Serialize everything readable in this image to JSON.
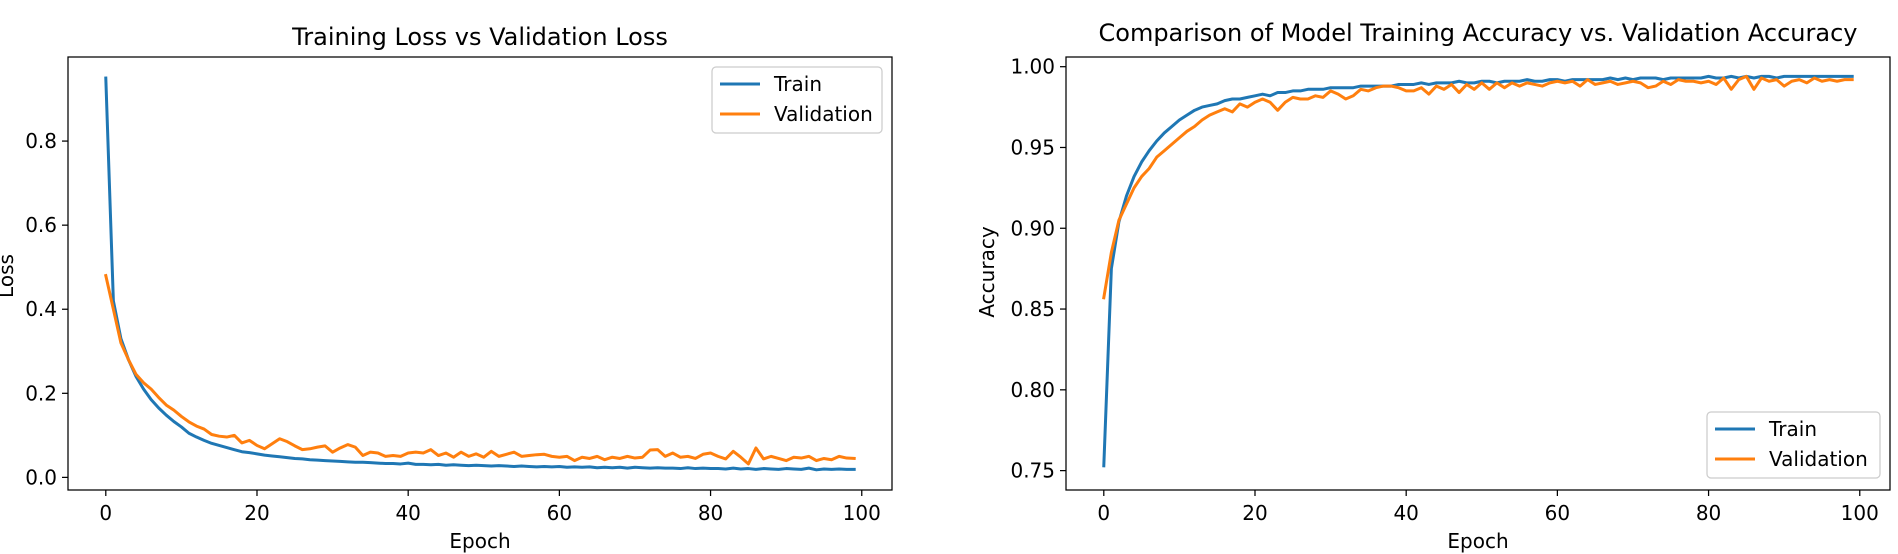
{
  "colors": {
    "train": "#1f77b4",
    "validation": "#ff7f0e"
  },
  "chart_data": [
    {
      "type": "line",
      "title": "Training Loss vs Validation Loss",
      "xlabel": "Epoch",
      "ylabel": "Loss",
      "xlim": [
        -5,
        104
      ],
      "ylim": [
        -0.03,
        1.0
      ],
      "xticks": [
        0,
        20,
        40,
        60,
        80,
        100
      ],
      "yticks": [
        0.0,
        0.2,
        0.4,
        0.6,
        0.8
      ],
      "ytick_labels": [
        "0.0",
        "0.2",
        "0.4",
        "0.6",
        "0.8"
      ],
      "grid": false,
      "legend_position": "top-right",
      "series": [
        {
          "name": "Train",
          "color": "#1f77b4",
          "x": [
            0,
            1,
            2,
            3,
            4,
            5,
            6,
            7,
            8,
            9,
            10,
            11,
            12,
            13,
            14,
            15,
            16,
            17,
            18,
            19,
            20,
            21,
            22,
            23,
            24,
            25,
            26,
            27,
            28,
            29,
            30,
            31,
            32,
            33,
            34,
            35,
            36,
            37,
            38,
            39,
            40,
            41,
            42,
            43,
            44,
            45,
            46,
            47,
            48,
            49,
            50,
            51,
            52,
            53,
            54,
            55,
            56,
            57,
            58,
            59,
            60,
            61,
            62,
            63,
            64,
            65,
            66,
            67,
            68,
            69,
            70,
            71,
            72,
            73,
            74,
            75,
            76,
            77,
            78,
            79,
            80,
            81,
            82,
            83,
            84,
            85,
            86,
            87,
            88,
            89,
            90,
            91,
            92,
            93,
            94,
            95,
            96,
            97,
            98,
            99
          ],
          "values": [
            0.95,
            0.42,
            0.33,
            0.28,
            0.24,
            0.21,
            0.185,
            0.165,
            0.148,
            0.133,
            0.12,
            0.105,
            0.096,
            0.088,
            0.081,
            0.076,
            0.071,
            0.066,
            0.061,
            0.059,
            0.056,
            0.053,
            0.051,
            0.049,
            0.047,
            0.045,
            0.044,
            0.042,
            0.041,
            0.04,
            0.039,
            0.038,
            0.037,
            0.036,
            0.036,
            0.035,
            0.034,
            0.033,
            0.033,
            0.032,
            0.034,
            0.031,
            0.031,
            0.03,
            0.031,
            0.029,
            0.03,
            0.029,
            0.028,
            0.029,
            0.028,
            0.027,
            0.028,
            0.027,
            0.026,
            0.027,
            0.026,
            0.025,
            0.026,
            0.025,
            0.026,
            0.024,
            0.025,
            0.024,
            0.025,
            0.023,
            0.024,
            0.023,
            0.024,
            0.022,
            0.024,
            0.023,
            0.022,
            0.023,
            0.022,
            0.022,
            0.021,
            0.023,
            0.021,
            0.022,
            0.021,
            0.021,
            0.02,
            0.022,
            0.02,
            0.021,
            0.019,
            0.021,
            0.02,
            0.019,
            0.021,
            0.02,
            0.019,
            0.022,
            0.018,
            0.02,
            0.019,
            0.02,
            0.019,
            0.019
          ]
        },
        {
          "name": "Validation",
          "color": "#ff7f0e",
          "x": [
            0,
            1,
            2,
            3,
            4,
            5,
            6,
            7,
            8,
            9,
            10,
            11,
            12,
            13,
            14,
            15,
            16,
            17,
            18,
            19,
            20,
            21,
            22,
            23,
            24,
            25,
            26,
            27,
            28,
            29,
            30,
            31,
            32,
            33,
            34,
            35,
            36,
            37,
            38,
            39,
            40,
            41,
            42,
            43,
            44,
            45,
            46,
            47,
            48,
            49,
            50,
            51,
            52,
            53,
            54,
            55,
            56,
            57,
            58,
            59,
            60,
            61,
            62,
            63,
            64,
            65,
            66,
            67,
            68,
            69,
            70,
            71,
            72,
            73,
            74,
            75,
            76,
            77,
            78,
            79,
            80,
            81,
            82,
            83,
            84,
            85,
            86,
            87,
            88,
            89,
            90,
            91,
            92,
            93,
            94,
            95,
            96,
            97,
            98,
            99
          ],
          "values": [
            0.48,
            0.4,
            0.32,
            0.28,
            0.245,
            0.225,
            0.21,
            0.19,
            0.172,
            0.16,
            0.145,
            0.132,
            0.122,
            0.115,
            0.102,
            0.098,
            0.096,
            0.1,
            0.082,
            0.088,
            0.076,
            0.068,
            0.08,
            0.092,
            0.085,
            0.075,
            0.066,
            0.068,
            0.072,
            0.075,
            0.06,
            0.07,
            0.078,
            0.072,
            0.052,
            0.06,
            0.058,
            0.05,
            0.052,
            0.05,
            0.058,
            0.06,
            0.058,
            0.066,
            0.052,
            0.058,
            0.048,
            0.06,
            0.05,
            0.056,
            0.048,
            0.062,
            0.05,
            0.055,
            0.06,
            0.05,
            0.052,
            0.054,
            0.055,
            0.05,
            0.048,
            0.05,
            0.04,
            0.048,
            0.045,
            0.05,
            0.042,
            0.048,
            0.045,
            0.05,
            0.046,
            0.048,
            0.065,
            0.066,
            0.05,
            0.058,
            0.048,
            0.05,
            0.045,
            0.055,
            0.058,
            0.05,
            0.044,
            0.062,
            0.048,
            0.032,
            0.07,
            0.044,
            0.05,
            0.045,
            0.04,
            0.048,
            0.046,
            0.05,
            0.04,
            0.045,
            0.042,
            0.05,
            0.046,
            0.045
          ]
        }
      ]
    },
    {
      "type": "line",
      "title": "Comparison of Model Training Accuracy vs. Validation Accuracy",
      "xlabel": "Epoch",
      "ylabel": "Accuracy",
      "xlim": [
        -5,
        104
      ],
      "ylim": [
        0.738,
        1.006
      ],
      "xticks": [
        0,
        20,
        40,
        60,
        80,
        100
      ],
      "yticks": [
        0.75,
        0.8,
        0.85,
        0.9,
        0.95,
        1.0
      ],
      "ytick_labels": [
        "0.75",
        "0.80",
        "0.85",
        "0.90",
        "0.95",
        "1.00"
      ],
      "grid": false,
      "legend_position": "bottom-right",
      "series": [
        {
          "name": "Train",
          "color": "#1f77b4",
          "x": [
            0,
            1,
            2,
            3,
            4,
            5,
            6,
            7,
            8,
            9,
            10,
            11,
            12,
            13,
            14,
            15,
            16,
            17,
            18,
            19,
            20,
            21,
            22,
            23,
            24,
            25,
            26,
            27,
            28,
            29,
            30,
            31,
            32,
            33,
            34,
            35,
            36,
            37,
            38,
            39,
            40,
            41,
            42,
            43,
            44,
            45,
            46,
            47,
            48,
            49,
            50,
            51,
            52,
            53,
            54,
            55,
            56,
            57,
            58,
            59,
            60,
            61,
            62,
            63,
            64,
            65,
            66,
            67,
            68,
            69,
            70,
            71,
            72,
            73,
            74,
            75,
            76,
            77,
            78,
            79,
            80,
            81,
            82,
            83,
            84,
            85,
            86,
            87,
            88,
            89,
            90,
            91,
            92,
            93,
            94,
            95,
            96,
            97,
            98,
            99
          ],
          "values": [
            0.753,
            0.875,
            0.904,
            0.92,
            0.932,
            0.941,
            0.948,
            0.954,
            0.959,
            0.963,
            0.967,
            0.97,
            0.973,
            0.975,
            0.976,
            0.977,
            0.979,
            0.98,
            0.98,
            0.981,
            0.982,
            0.983,
            0.982,
            0.984,
            0.984,
            0.985,
            0.985,
            0.986,
            0.986,
            0.986,
            0.987,
            0.987,
            0.987,
            0.987,
            0.988,
            0.988,
            0.988,
            0.988,
            0.988,
            0.989,
            0.989,
            0.989,
            0.99,
            0.989,
            0.99,
            0.99,
            0.99,
            0.991,
            0.99,
            0.99,
            0.991,
            0.991,
            0.99,
            0.991,
            0.991,
            0.991,
            0.992,
            0.991,
            0.991,
            0.992,
            0.992,
            0.991,
            0.992,
            0.992,
            0.992,
            0.992,
            0.992,
            0.993,
            0.992,
            0.993,
            0.992,
            0.993,
            0.993,
            0.993,
            0.992,
            0.993,
            0.993,
            0.993,
            0.993,
            0.993,
            0.994,
            0.993,
            0.993,
            0.994,
            0.993,
            0.994,
            0.993,
            0.994,
            0.994,
            0.993,
            0.994,
            0.994,
            0.994,
            0.994,
            0.994,
            0.994,
            0.994,
            0.994,
            0.994,
            0.994
          ]
        },
        {
          "name": "Validation",
          "color": "#ff7f0e",
          "x": [
            0,
            1,
            2,
            3,
            4,
            5,
            6,
            7,
            8,
            9,
            10,
            11,
            12,
            13,
            14,
            15,
            16,
            17,
            18,
            19,
            20,
            21,
            22,
            23,
            24,
            25,
            26,
            27,
            28,
            29,
            30,
            31,
            32,
            33,
            34,
            35,
            36,
            37,
            38,
            39,
            40,
            41,
            42,
            43,
            44,
            45,
            46,
            47,
            48,
            49,
            50,
            51,
            52,
            53,
            54,
            55,
            56,
            57,
            58,
            59,
            60,
            61,
            62,
            63,
            64,
            65,
            66,
            67,
            68,
            69,
            70,
            71,
            72,
            73,
            74,
            75,
            76,
            77,
            78,
            79,
            80,
            81,
            82,
            83,
            84,
            85,
            86,
            87,
            88,
            89,
            90,
            91,
            92,
            93,
            94,
            95,
            96,
            97,
            98,
            99
          ],
          "values": [
            0.857,
            0.885,
            0.905,
            0.915,
            0.925,
            0.932,
            0.937,
            0.944,
            0.948,
            0.952,
            0.956,
            0.96,
            0.963,
            0.967,
            0.97,
            0.972,
            0.974,
            0.972,
            0.977,
            0.975,
            0.978,
            0.98,
            0.978,
            0.973,
            0.978,
            0.981,
            0.98,
            0.98,
            0.982,
            0.981,
            0.985,
            0.983,
            0.98,
            0.982,
            0.986,
            0.985,
            0.987,
            0.988,
            0.988,
            0.987,
            0.985,
            0.985,
            0.987,
            0.983,
            0.988,
            0.986,
            0.989,
            0.984,
            0.989,
            0.986,
            0.99,
            0.986,
            0.99,
            0.987,
            0.99,
            0.988,
            0.99,
            0.989,
            0.988,
            0.99,
            0.991,
            0.99,
            0.991,
            0.988,
            0.992,
            0.989,
            0.99,
            0.991,
            0.989,
            0.99,
            0.991,
            0.99,
            0.987,
            0.988,
            0.991,
            0.989,
            0.992,
            0.991,
            0.991,
            0.99,
            0.991,
            0.989,
            0.993,
            0.986,
            0.992,
            0.994,
            0.986,
            0.993,
            0.991,
            0.992,
            0.988,
            0.991,
            0.992,
            0.99,
            0.993,
            0.991,
            0.992,
            0.991,
            0.992,
            0.992
          ]
        }
      ]
    }
  ]
}
